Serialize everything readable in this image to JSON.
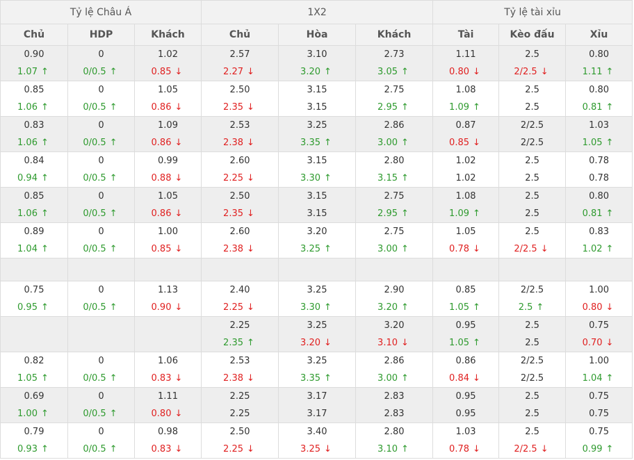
{
  "groups": [
    {
      "label": "Tỷ lệ Châu Á",
      "span": 3
    },
    {
      "label": "1X2",
      "span": 3
    },
    {
      "label": "Tỷ lệ tài xỉu",
      "span": 3
    }
  ],
  "columns": [
    "Chủ",
    "HDP",
    "Khách",
    "Chủ",
    "Hòa",
    "Khách",
    "Tài",
    "Kèo đấu",
    "Xỉu"
  ],
  "colors": {
    "up": "#2e9a2e",
    "down": "#e02020",
    "same": "#333333"
  },
  "icons": {
    "up": "arrow-up-icon",
    "down": "arrow-down-icon"
  },
  "rows": [
    {
      "cells": [
        [
          "0.90",
          "1.07",
          "up"
        ],
        [
          "0",
          "0/0.5",
          "up"
        ],
        [
          "1.02",
          "0.85",
          "down"
        ],
        [
          "2.57",
          "2.27",
          "down"
        ],
        [
          "3.10",
          "3.20",
          "up"
        ],
        [
          "2.73",
          "3.05",
          "up"
        ],
        [
          "1.11",
          "0.80",
          "down"
        ],
        [
          "2.5",
          "2/2.5",
          "down"
        ],
        [
          "0.80",
          "1.11",
          "up"
        ]
      ]
    },
    {
      "cells": [
        [
          "0.85",
          "1.06",
          "up"
        ],
        [
          "0",
          "0/0.5",
          "up"
        ],
        [
          "1.05",
          "0.86",
          "down"
        ],
        [
          "2.50",
          "2.35",
          "down"
        ],
        [
          "3.15",
          "3.15",
          "same"
        ],
        [
          "2.75",
          "2.95",
          "up"
        ],
        [
          "1.08",
          "1.09",
          "up"
        ],
        [
          "2.5",
          "2.5",
          "same"
        ],
        [
          "0.80",
          "0.81",
          "up"
        ]
      ]
    },
    {
      "cells": [
        [
          "0.83",
          "1.06",
          "up"
        ],
        [
          "0",
          "0/0.5",
          "up"
        ],
        [
          "1.09",
          "0.86",
          "down"
        ],
        [
          "2.53",
          "2.38",
          "down"
        ],
        [
          "3.25",
          "3.35",
          "up"
        ],
        [
          "2.86",
          "3.00",
          "up"
        ],
        [
          "0.87",
          "0.85",
          "down"
        ],
        [
          "2/2.5",
          "2/2.5",
          "same"
        ],
        [
          "1.03",
          "1.05",
          "up"
        ]
      ]
    },
    {
      "cells": [
        [
          "0.84",
          "0.94",
          "up"
        ],
        [
          "0",
          "0/0.5",
          "up"
        ],
        [
          "0.99",
          "0.88",
          "down"
        ],
        [
          "2.60",
          "2.25",
          "down"
        ],
        [
          "3.15",
          "3.30",
          "up"
        ],
        [
          "2.80",
          "3.15",
          "up"
        ],
        [
          "1.02",
          "1.02",
          "same"
        ],
        [
          "2.5",
          "2.5",
          "same"
        ],
        [
          "0.78",
          "0.78",
          "same"
        ]
      ]
    },
    {
      "cells": [
        [
          "0.85",
          "1.06",
          "up"
        ],
        [
          "0",
          "0/0.5",
          "up"
        ],
        [
          "1.05",
          "0.86",
          "down"
        ],
        [
          "2.50",
          "2.35",
          "down"
        ],
        [
          "3.15",
          "3.15",
          "same"
        ],
        [
          "2.75",
          "2.95",
          "up"
        ],
        [
          "1.08",
          "1.09",
          "up"
        ],
        [
          "2.5",
          "2.5",
          "same"
        ],
        [
          "0.80",
          "0.81",
          "up"
        ]
      ]
    },
    {
      "cells": [
        [
          "0.89",
          "1.04",
          "up"
        ],
        [
          "0",
          "0/0.5",
          "up"
        ],
        [
          "1.00",
          "0.85",
          "down"
        ],
        [
          "2.60",
          "2.38",
          "down"
        ],
        [
          "3.20",
          "3.25",
          "up"
        ],
        [
          "2.75",
          "3.00",
          "up"
        ],
        [
          "1.05",
          "0.78",
          "down"
        ],
        [
          "2.5",
          "2/2.5",
          "down"
        ],
        [
          "0.83",
          "1.02",
          "up"
        ]
      ]
    },
    {
      "blank": true
    },
    {
      "cells": [
        [
          "0.75",
          "0.95",
          "up"
        ],
        [
          "0",
          "0/0.5",
          "up"
        ],
        [
          "1.13",
          "0.90",
          "down"
        ],
        [
          "2.40",
          "2.25",
          "down"
        ],
        [
          "3.25",
          "3.30",
          "up"
        ],
        [
          "2.90",
          "3.20",
          "up"
        ],
        [
          "0.85",
          "1.05",
          "up"
        ],
        [
          "2/2.5",
          "2.5",
          "up"
        ],
        [
          "1.00",
          "0.80",
          "down"
        ]
      ]
    },
    {
      "cells": [
        [
          "",
          "",
          ""
        ],
        [
          "",
          "",
          ""
        ],
        [
          "",
          "",
          ""
        ],
        [
          "2.25",
          "2.35",
          "up"
        ],
        [
          "3.25",
          "3.20",
          "down"
        ],
        [
          "3.20",
          "3.10",
          "down"
        ],
        [
          "0.95",
          "1.05",
          "up"
        ],
        [
          "2.5",
          "2.5",
          "same"
        ],
        [
          "0.75",
          "0.70",
          "down"
        ]
      ]
    },
    {
      "cells": [
        [
          "0.82",
          "1.05",
          "up"
        ],
        [
          "0",
          "0/0.5",
          "up"
        ],
        [
          "1.06",
          "0.83",
          "down"
        ],
        [
          "2.53",
          "2.38",
          "down"
        ],
        [
          "3.25",
          "3.35",
          "up"
        ],
        [
          "2.86",
          "3.00",
          "up"
        ],
        [
          "0.86",
          "0.84",
          "down"
        ],
        [
          "2/2.5",
          "2/2.5",
          "same"
        ],
        [
          "1.00",
          "1.04",
          "up"
        ]
      ]
    },
    {
      "cells": [
        [
          "0.69",
          "1.00",
          "up"
        ],
        [
          "0",
          "0/0.5",
          "up"
        ],
        [
          "1.11",
          "0.80",
          "down"
        ],
        [
          "2.25",
          "2.25",
          "same"
        ],
        [
          "3.17",
          "3.17",
          "same"
        ],
        [
          "2.83",
          "2.83",
          "same"
        ],
        [
          "0.95",
          "0.95",
          "same"
        ],
        [
          "2.5",
          "2.5",
          "same"
        ],
        [
          "0.75",
          "0.75",
          "same"
        ]
      ]
    },
    {
      "cells": [
        [
          "0.79",
          "0.93",
          "up"
        ],
        [
          "0",
          "0/0.5",
          "up"
        ],
        [
          "0.98",
          "0.83",
          "down"
        ],
        [
          "2.50",
          "2.25",
          "down"
        ],
        [
          "3.40",
          "3.25",
          "down"
        ],
        [
          "2.80",
          "3.10",
          "up"
        ],
        [
          "1.03",
          "0.78",
          "down"
        ],
        [
          "2.5",
          "2/2.5",
          "down"
        ],
        [
          "0.75",
          "0.99",
          "up"
        ]
      ]
    }
  ]
}
